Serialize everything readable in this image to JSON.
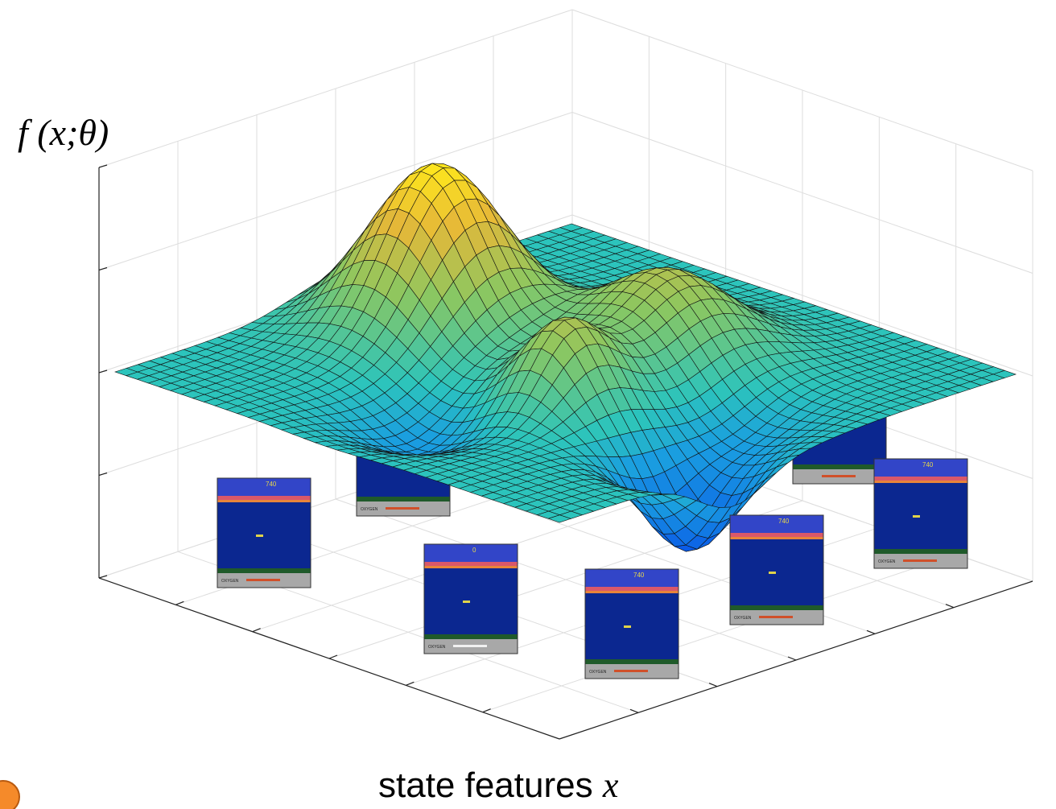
{
  "y_axis_label": "f (x;θ)",
  "x_axis_label": {
    "text": "state features",
    "variable": "x"
  },
  "screenshots": [
    {
      "score": "740",
      "oxygen": "OXYGEN"
    },
    {
      "oxygen": "OXYGEN"
    },
    {
      "score": "0",
      "oxygen": "OXYGEN"
    },
    {
      "score": "740",
      "oxygen": "OXYGEN"
    },
    {
      "score": "740",
      "oxygen": "OXYGEN"
    },
    {
      "score": "740",
      "oxygen": "OXYGEN"
    }
  ]
}
